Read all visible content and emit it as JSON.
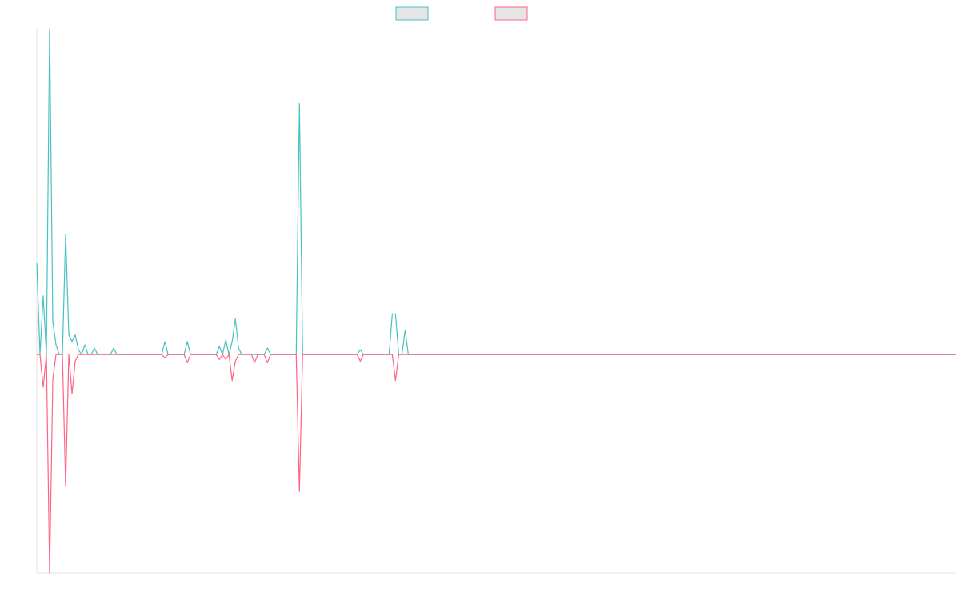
{
  "chart_data": {
    "type": "line",
    "x": [
      0,
      1,
      2,
      3,
      4,
      5,
      6,
      7,
      8,
      9,
      10,
      11,
      12,
      13,
      14,
      15,
      16,
      17,
      18,
      19,
      23,
      24,
      25,
      39,
      40,
      41,
      46,
      47,
      48,
      56,
      57,
      58,
      59,
      60,
      61,
      62,
      63,
      64,
      67,
      68,
      69,
      71,
      72,
      73,
      81,
      82,
      83,
      100,
      101,
      102,
      110,
      111,
      112,
      113,
      114,
      115,
      116,
      287
    ],
    "xlim": [
      0,
      287
    ],
    "ylim": [
      -67,
      100
    ],
    "legend": "top",
    "series": [
      {
        "color": "#4bc0c0",
        "values": [
          28,
          0,
          18,
          0,
          100,
          10,
          3,
          0,
          0,
          37,
          6,
          4,
          6,
          1.5,
          0,
          3,
          0,
          0,
          2,
          0,
          0,
          2,
          0,
          0,
          4,
          0,
          0,
          4,
          0,
          0,
          2.5,
          0,
          4.5,
          0,
          4,
          11,
          2,
          0,
          0,
          0,
          0,
          0,
          2,
          0,
          0,
          77,
          0,
          0,
          1.5,
          0,
          0,
          12.5,
          12.5,
          0,
          0,
          7.5,
          0,
          0
        ]
      },
      {
        "color": "#ff6384",
        "values": [
          0,
          0,
          -10,
          0,
          -67,
          -7.6,
          0,
          0,
          0,
          -40.5,
          0,
          -12,
          -2,
          0,
          0,
          0,
          0,
          0,
          0,
          0,
          0,
          0,
          0,
          0,
          -1,
          0,
          0,
          -2.5,
          0,
          0,
          -1.5,
          0,
          -1.5,
          0,
          -8,
          -2,
          0,
          0,
          0,
          -2.5,
          0,
          0,
          -2.5,
          0,
          0,
          -42,
          0,
          0,
          -2,
          0,
          0,
          0,
          -8,
          0,
          0,
          0,
          0,
          0
        ]
      }
    ]
  }
}
